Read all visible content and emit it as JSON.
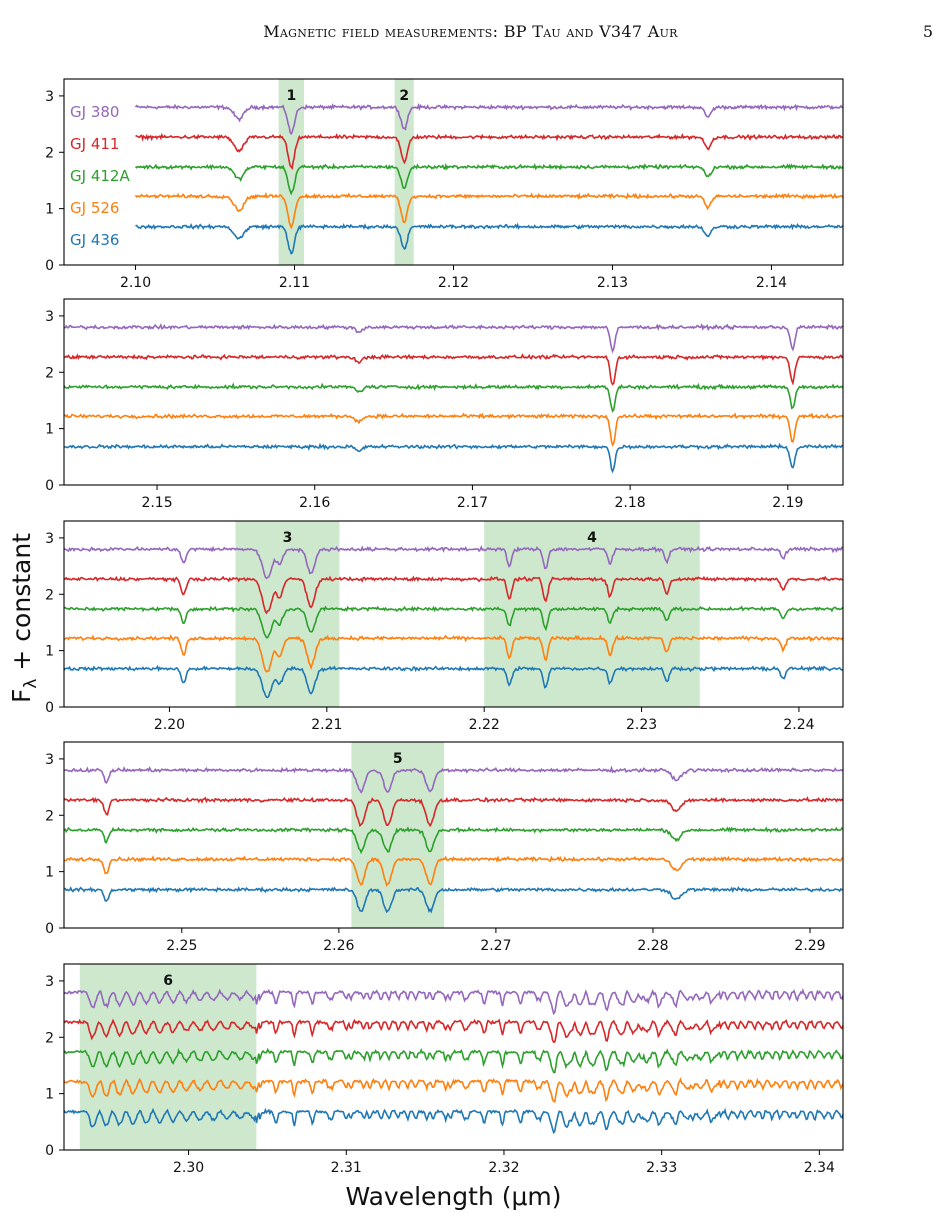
{
  "header": {
    "running_head": "Magnetic field measurements: BP Tau and V347 Aur",
    "page_number": "5"
  },
  "chart_data": {
    "type": "line",
    "xlabel": "Wavelength (μm)",
    "ylabel": "F_λ + constant",
    "ylabel_parts": {
      "base": "F",
      "sub": "λ",
      "rest": " + constant"
    },
    "series": [
      {
        "name": "GJ 380",
        "color": "#9467bd",
        "offset": 2.8
      },
      {
        "name": "GJ 411",
        "color": "#d62728",
        "offset": 2.27
      },
      {
        "name": "GJ 412A",
        "color": "#2ca02c",
        "offset": 1.74
      },
      {
        "name": "GJ 526",
        "color": "#ff7f0e",
        "offset": 1.22
      },
      {
        "name": "GJ 436",
        "color": "#1f77b4",
        "offset": 0.68
      }
    ],
    "panels": [
      {
        "xlim": [
          2.0955,
          2.1445
        ],
        "ylim": [
          0,
          3.3
        ],
        "xticks": [
          "2.10",
          "2.11",
          "2.12",
          "2.13",
          "2.14"
        ],
        "xtick_values": [
          2.1,
          2.11,
          2.12,
          2.13,
          2.14
        ],
        "yticks": [
          "0",
          "1",
          "2",
          "3"
        ],
        "data_start": 2.1,
        "show_legend": true,
        "regions": [
          {
            "label": "1",
            "x": [
              2.109,
              2.1106
            ]
          },
          {
            "label": "2",
            "x": [
              2.1163,
              2.1175
            ]
          }
        ],
        "lines": [
          {
            "x": 2.1065,
            "d": 0.25,
            "w": 0.0003
          },
          {
            "x": 2.1098,
            "d": 0.55,
            "w": 0.0002
          },
          {
            "x": 2.1169,
            "d": 0.45,
            "w": 0.0002
          },
          {
            "x": 2.136,
            "d": 0.2,
            "w": 0.0002
          }
        ]
      },
      {
        "xlim": [
          2.1441,
          2.1935
        ],
        "ylim": [
          0,
          3.3
        ],
        "xticks": [
          "2.15",
          "2.16",
          "2.17",
          "2.18",
          "2.19"
        ],
        "xtick_values": [
          2.15,
          2.16,
          2.17,
          2.18,
          2.19
        ],
        "yticks": [
          "0",
          "1",
          "2",
          "3"
        ],
        "data_start": 2.1441,
        "show_legend": false,
        "regions": [],
        "lines": [
          {
            "x": 2.1789,
            "d": 0.5,
            "w": 0.00015
          },
          {
            "x": 2.1903,
            "d": 0.45,
            "w": 0.00015
          },
          {
            "x": 2.1628,
            "d": 0.1,
            "w": 0.0002
          }
        ]
      },
      {
        "xlim": [
          2.1933,
          2.2428
        ],
        "ylim": [
          0,
          3.3
        ],
        "xticks": [
          "2.20",
          "2.21",
          "2.22",
          "2.23",
          "2.24"
        ],
        "xtick_values": [
          2.2,
          2.21,
          2.22,
          2.23,
          2.24
        ],
        "yticks": [
          "0",
          "1",
          "2",
          "3"
        ],
        "data_start": 2.1933,
        "show_legend": false,
        "regions": [
          {
            "label": "3",
            "x": [
              2.2042,
              2.2108
            ]
          },
          {
            "label": "4",
            "x": [
              2.22,
              2.2337
            ]
          }
        ],
        "lines": [
          {
            "x": 2.2009,
            "d": 0.3,
            "w": 0.00015
          },
          {
            "x": 2.2062,
            "d": 0.6,
            "w": 0.0003
          },
          {
            "x": 2.207,
            "d": 0.3,
            "w": 0.0002
          },
          {
            "x": 2.209,
            "d": 0.5,
            "w": 0.00025
          },
          {
            "x": 2.2216,
            "d": 0.35,
            "w": 0.00015
          },
          {
            "x": 2.2239,
            "d": 0.4,
            "w": 0.00015
          },
          {
            "x": 2.228,
            "d": 0.3,
            "w": 0.00015
          },
          {
            "x": 2.2316,
            "d": 0.25,
            "w": 0.00015
          },
          {
            "x": 2.239,
            "d": 0.2,
            "w": 0.00015
          }
        ]
      },
      {
        "xlim": [
          2.2425,
          2.2921
        ],
        "ylim": [
          0,
          3.3
        ],
        "xticks": [
          "2.25",
          "2.26",
          "2.27",
          "2.28",
          "2.29"
        ],
        "xtick_values": [
          2.25,
          2.26,
          2.27,
          2.28,
          2.29
        ],
        "yticks": [
          "0",
          "1",
          "2",
          "3"
        ],
        "data_start": 2.2425,
        "show_legend": false,
        "regions": [
          {
            "label": "5",
            "x": [
              2.2608,
              2.2667
            ]
          }
        ],
        "lines": [
          {
            "x": 2.2452,
            "d": 0.25,
            "w": 0.00015
          },
          {
            "x": 2.2614,
            "d": 0.45,
            "w": 0.00025
          },
          {
            "x": 2.2631,
            "d": 0.45,
            "w": 0.00025
          },
          {
            "x": 2.2658,
            "d": 0.45,
            "w": 0.00025
          },
          {
            "x": 2.2815,
            "d": 0.2,
            "w": 0.0003
          }
        ]
      },
      {
        "xlim": [
          2.2921,
          2.3415
        ],
        "ylim": [
          0,
          3.3
        ],
        "xticks": [
          "2.30",
          "2.31",
          "2.32",
          "2.33",
          "2.34"
        ],
        "xtick_values": [
          2.3,
          2.31,
          2.32,
          2.33,
          2.34
        ],
        "yticks": [
          "0",
          "1",
          "2",
          "3"
        ],
        "data_start": 2.2921,
        "show_legend": false,
        "regions": [
          {
            "label": "6",
            "x": [
              2.2931,
              2.3043
            ]
          }
        ],
        "bandheads": [
          2.2935,
          2.3227
        ],
        "lines": []
      }
    ]
  }
}
